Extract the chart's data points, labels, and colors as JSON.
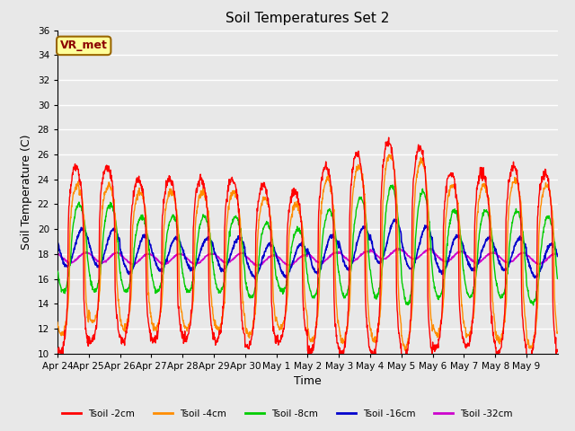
{
  "title": "Soil Temperatures Set 2",
  "xlabel": "Time",
  "ylabel": "Soil Temperature (C)",
  "ylim": [
    10,
    36
  ],
  "yticks": [
    10,
    12,
    14,
    16,
    18,
    20,
    22,
    24,
    26,
    28,
    30,
    32,
    34,
    36
  ],
  "background_color": "#e8e8e8",
  "grid_color": "#ffffff",
  "series_colors": [
    "#ff0000",
    "#ff8c00",
    "#00cc00",
    "#0000cc",
    "#cc00cc"
  ],
  "series_labels": [
    "Tsoil -2cm",
    "Tsoil -4cm",
    "Tsoil -8cm",
    "Tsoil -16cm",
    "Tsoil -32cm"
  ],
  "annotation_text": "VR_met",
  "annotation_bg": "#ffff99",
  "annotation_border": "#996600",
  "days": [
    "Apr 24",
    "Apr 25",
    "Apr 26",
    "Apr 27",
    "Apr 28",
    "Apr 29",
    "Apr 30",
    "May 1",
    "May 2",
    "May 3",
    "May 4",
    "May 5",
    "May 6",
    "May 7",
    "May 8",
    "May 9"
  ],
  "n_days": 16,
  "points_per_day": 96,
  "peak_hour": 14,
  "trough_hour": 4,
  "amp2": [
    7.5,
    7.0,
    6.5,
    6.5,
    6.5,
    6.5,
    6.5,
    6.0,
    7.5,
    8.0,
    8.5,
    8.5,
    7.0,
    7.0,
    7.5,
    7.5
  ],
  "base2": [
    17.5,
    18.0,
    17.5,
    17.5,
    17.5,
    17.5,
    17.0,
    17.0,
    17.5,
    18.0,
    18.5,
    18.0,
    17.5,
    17.5,
    17.5,
    17.0
  ],
  "amp4": [
    6.0,
    5.5,
    5.5,
    5.5,
    5.5,
    5.5,
    5.5,
    5.0,
    6.5,
    7.0,
    7.5,
    7.5,
    6.0,
    6.0,
    6.5,
    6.5
  ],
  "base4": [
    17.5,
    18.0,
    17.5,
    17.5,
    17.5,
    17.5,
    17.0,
    17.0,
    17.5,
    18.0,
    18.5,
    18.0,
    17.5,
    17.5,
    17.5,
    17.0
  ],
  "amp8": [
    3.5,
    3.5,
    3.0,
    3.0,
    3.0,
    3.0,
    3.0,
    2.5,
    3.5,
    4.0,
    4.5,
    4.5,
    3.5,
    3.5,
    3.5,
    3.5
  ],
  "base8": [
    18.5,
    18.5,
    18.0,
    18.0,
    18.0,
    18.0,
    17.5,
    17.5,
    18.0,
    18.5,
    19.0,
    18.5,
    18.0,
    18.0,
    18.0,
    17.5
  ],
  "amp16": [
    1.5,
    1.5,
    1.5,
    1.3,
    1.3,
    1.3,
    1.3,
    1.3,
    1.5,
    1.7,
    1.7,
    1.7,
    1.5,
    1.3,
    1.3,
    1.3
  ],
  "base16": [
    18.5,
    18.5,
    18.0,
    18.0,
    18.0,
    18.0,
    17.5,
    17.5,
    18.0,
    18.5,
    19.0,
    18.5,
    18.0,
    18.0,
    18.0,
    17.5
  ],
  "amp32": [
    0.4,
    0.4,
    0.4,
    0.4,
    0.4,
    0.4,
    0.4,
    0.4,
    0.4,
    0.4,
    0.4,
    0.4,
    0.4,
    0.4,
    0.4,
    0.4
  ],
  "base32": [
    17.7,
    17.7,
    17.6,
    17.6,
    17.6,
    17.7,
    17.5,
    17.5,
    17.7,
    17.8,
    18.0,
    18.0,
    17.8,
    17.7,
    17.7,
    17.6
  ]
}
